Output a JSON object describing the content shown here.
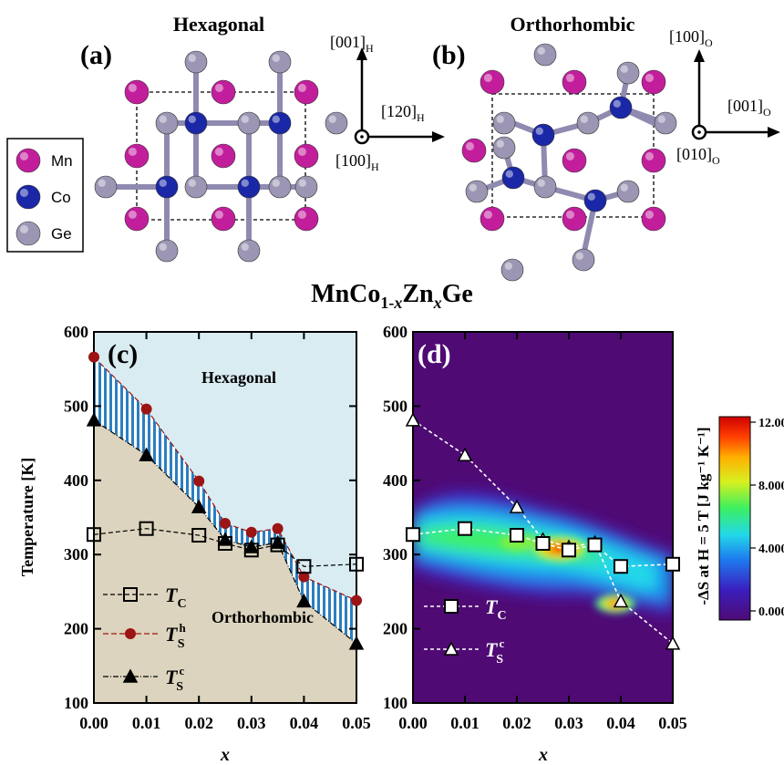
{
  "structures": {
    "hex": {
      "title": "Hexagonal",
      "label": "(a)",
      "axes": {
        "up": "[001]",
        "up_sub": "H",
        "right": "[120]",
        "right_sub": "H",
        "center": "[100]",
        "center_sub": "H"
      }
    },
    "ortho": {
      "title": "Orthorhombic",
      "label": "(b)",
      "axes": {
        "up": "[100]",
        "up_sub": "O",
        "right": "[001]",
        "right_sub": "O",
        "center": "[010]",
        "center_sub": "O"
      }
    },
    "legend": {
      "items": [
        {
          "label": "Mn",
          "color": "#c21e9c"
        },
        {
          "label": "Co",
          "color": "#1a27a6"
        },
        {
          "label": "Ge",
          "color": "#9c96b4"
        }
      ]
    }
  },
  "formula": {
    "prefix": "MnCo",
    "sub1": "1-",
    "subx1": "x",
    "mid": "Zn",
    "subx2": "x",
    "suffix": "Ge"
  },
  "colors": {
    "hex_region": "#d8ecf2",
    "ortho_region": "#dcd4be",
    "hatch": "#2b7fc0",
    "ts_h": "#9c1414",
    "heatmap_bg": "#4f0a74"
  },
  "chart_data": [
    {
      "type": "line",
      "panel_label": "(c)",
      "xlabel": "x",
      "ylabel": "Temperature [K]",
      "xlim": [
        0,
        0.05
      ],
      "ylim": [
        100,
        600
      ],
      "xticks": [
        "0.00",
        "0.01",
        "0.02",
        "0.03",
        "0.04",
        "0.05"
      ],
      "yticks": [
        "100",
        "200",
        "300",
        "400",
        "500",
        "600"
      ],
      "region_labels": [
        "Hexagonal",
        "Orthorhombic"
      ],
      "series": [
        {
          "name": "T_C",
          "x": [
            0,
            0.01,
            0.02,
            0.025,
            0.03,
            0.035,
            0.04,
            0.05
          ],
          "y": [
            327,
            335,
            326,
            315,
            306,
            313,
            284,
            287
          ]
        },
        {
          "name": "T_S^h",
          "x": [
            0,
            0.01,
            0.02,
            0.025,
            0.03,
            0.035,
            0.04,
            0.05
          ],
          "y": [
            566,
            496,
            399,
            342,
            330,
            335,
            270,
            238
          ]
        },
        {
          "name": "T_S^c",
          "x": [
            0,
            0.01,
            0.02,
            0.025,
            0.03,
            0.035,
            0.04,
            0.05
          ],
          "y": [
            481,
            434,
            364,
            320,
            310,
            316,
            237,
            180
          ]
        }
      ],
      "legend": [
        {
          "sym": "T",
          "sub": "C",
          "sup": ""
        },
        {
          "sym": "T",
          "sub": "S",
          "sup": "h"
        },
        {
          "sym": "T",
          "sub": "S",
          "sup": "c"
        }
      ]
    },
    {
      "type": "heatmap",
      "panel_label": "(d)",
      "xlabel": "x",
      "xlim": [
        0,
        0.05
      ],
      "ylim": [
        100,
        600
      ],
      "xticks": [
        "0.00",
        "0.01",
        "0.02",
        "0.03",
        "0.04",
        "0.05"
      ],
      "yticks": [
        "100",
        "200",
        "300",
        "400",
        "500",
        "600"
      ],
      "colorbar": {
        "label": "-ΔS at H = 5 T [J kg⁻¹ K⁻¹]",
        "ticks": [
          "0.000",
          "4.000",
          "8.000",
          "12.00"
        ],
        "range": [
          0,
          12
        ]
      },
      "series": [
        {
          "name": "T_C",
          "x": [
            0,
            0.01,
            0.02,
            0.025,
            0.03,
            0.035,
            0.04,
            0.05
          ],
          "y": [
            327,
            335,
            326,
            315,
            306,
            313,
            284,
            287
          ]
        },
        {
          "name": "T_S^c",
          "x": [
            0,
            0.01,
            0.02,
            0.025,
            0.03,
            0.035,
            0.04,
            0.05
          ],
          "y": [
            481,
            434,
            364,
            320,
            310,
            316,
            237,
            180
          ]
        }
      ],
      "legend": [
        {
          "sym": "T",
          "sub": "C",
          "sup": ""
        },
        {
          "sym": "T",
          "sub": "S",
          "sup": "c"
        }
      ]
    }
  ]
}
